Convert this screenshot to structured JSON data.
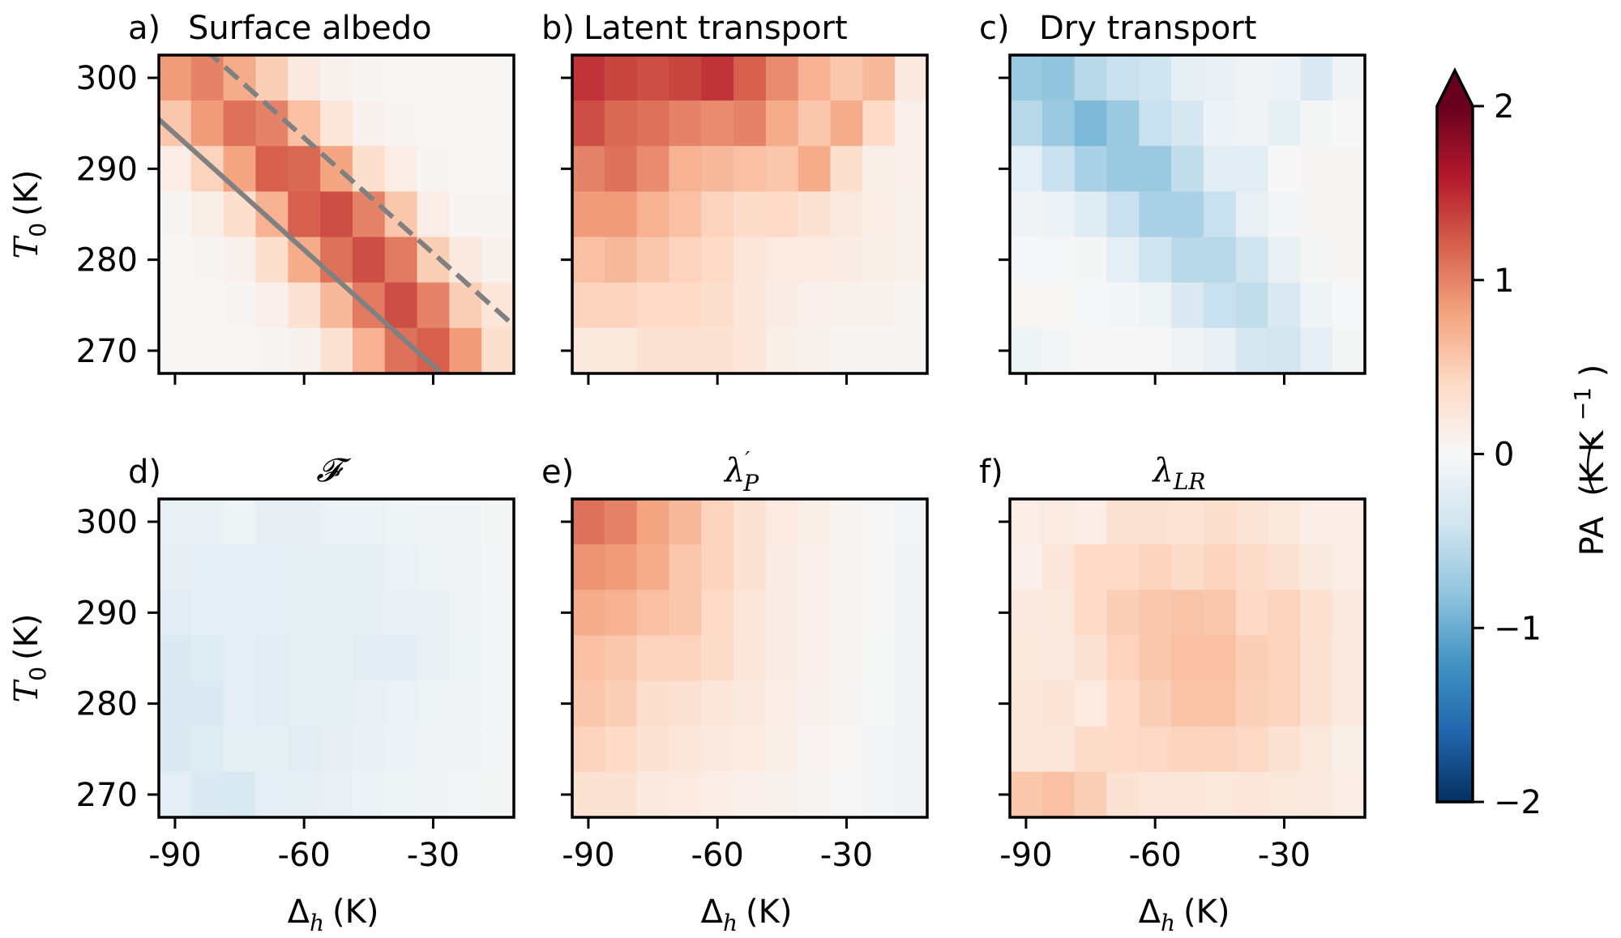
{
  "chart_data": {
    "type": "heatmap",
    "colormap": "RdBu_r",
    "x": [
      -90,
      -82.5,
      -75,
      -67.5,
      -60,
      -52.5,
      -45,
      -37.5,
      -30,
      -22.5,
      -15
    ],
    "y": [
      300,
      295,
      290,
      285,
      280,
      275,
      270
    ],
    "xlabel": "Δh (K)",
    "ylabel": "T0 (K)",
    "xticks": [
      -90,
      -60,
      -30
    ],
    "xtick_labels": [
      "-90",
      "-60",
      "-30"
    ],
    "yticks": [
      300,
      290,
      280,
      270
    ],
    "ytick_labels": [
      "300",
      "290",
      "280",
      "270"
    ],
    "colorbar": {
      "label": "PA (K K⁻¹)",
      "label_parts": {
        "main": "PA",
        "unit": "(K K",
        "exp": "−1",
        "close": ")"
      },
      "range": [
        -2,
        2
      ],
      "ticks": [
        2,
        1,
        0,
        -1,
        -2
      ],
      "tick_labels": [
        "2",
        "1",
        "0",
        "−1",
        "−2"
      ],
      "extend": "max"
    },
    "panels": [
      {
        "id": "a",
        "letter": "a)",
        "title": "Surface albedo",
        "title_math": false,
        "show_ylabel": true,
        "show_xlabel": false,
        "lines": [
          {
            "style": "solid",
            "color": "#808080",
            "x": [
              -93.9,
              -28.5
            ],
            "y": [
              295.5,
              267.7
            ]
          },
          {
            "style": "dashed",
            "color": "#808080",
            "x": [
              -82.9,
              -11.8
            ],
            "y": [
              303.1,
              273.0
            ]
          }
        ],
        "values": [
          [
            0.85,
            1.0,
            0.75,
            0.5,
            0.2,
            0.08,
            0.03,
            0.02,
            0.02,
            0.02,
            0.02
          ],
          [
            0.55,
            0.85,
            1.1,
            1.0,
            0.6,
            0.25,
            0.08,
            0.04,
            0.02,
            0.02,
            0.02
          ],
          [
            0.15,
            0.45,
            0.8,
            1.2,
            1.15,
            0.8,
            0.35,
            0.15,
            0.04,
            0.02,
            0.02
          ],
          [
            0.03,
            0.12,
            0.35,
            0.7,
            1.2,
            1.3,
            1.0,
            0.55,
            0.15,
            0.05,
            0.04
          ],
          [
            0.02,
            0.03,
            0.08,
            0.35,
            0.75,
            1.1,
            1.3,
            1.05,
            0.5,
            0.2,
            0.08
          ],
          [
            0.02,
            0.02,
            0.03,
            0.1,
            0.3,
            0.65,
            1.05,
            1.3,
            1.0,
            0.5,
            0.25
          ],
          [
            0.02,
            0.02,
            0.02,
            0.03,
            0.07,
            0.3,
            0.7,
            1.1,
            1.2,
            0.85,
            0.35
          ]
        ]
      },
      {
        "id": "b",
        "letter": "b)",
        "title": "Latent transport",
        "title_math": false,
        "show_ylabel": false,
        "show_xlabel": false,
        "lines": [],
        "values": [
          [
            1.45,
            1.35,
            1.3,
            1.35,
            1.45,
            1.2,
            0.95,
            0.7,
            0.55,
            0.65,
            0.2
          ],
          [
            1.3,
            1.15,
            1.1,
            1.0,
            0.95,
            1.0,
            0.75,
            0.55,
            0.75,
            0.4,
            0.1
          ],
          [
            1.0,
            1.1,
            0.95,
            0.7,
            0.65,
            0.6,
            0.55,
            0.75,
            0.35,
            0.12,
            0.1
          ],
          [
            0.85,
            0.85,
            0.7,
            0.6,
            0.45,
            0.38,
            0.4,
            0.3,
            0.2,
            0.15,
            0.08
          ],
          [
            0.6,
            0.65,
            0.55,
            0.45,
            0.4,
            0.25,
            0.18,
            0.18,
            0.16,
            0.12,
            0.08
          ],
          [
            0.45,
            0.45,
            0.4,
            0.4,
            0.35,
            0.25,
            0.16,
            0.1,
            0.09,
            0.07,
            0.05
          ],
          [
            0.22,
            0.22,
            0.3,
            0.3,
            0.3,
            0.25,
            0.12,
            0.07,
            0.05,
            0.04,
            0.03
          ]
        ]
      },
      {
        "id": "c",
        "letter": "c)",
        "title": "Dry transport",
        "title_math": false,
        "show_ylabel": false,
        "show_xlabel": false,
        "lines": [],
        "values": [
          [
            -0.75,
            -0.8,
            -0.55,
            -0.45,
            -0.4,
            -0.18,
            -0.15,
            -0.08,
            -0.12,
            -0.3,
            -0.08
          ],
          [
            -0.55,
            -0.75,
            -0.9,
            -0.75,
            -0.45,
            -0.35,
            -0.12,
            -0.08,
            -0.18,
            -0.03,
            0.0
          ],
          [
            -0.2,
            -0.45,
            -0.65,
            -0.75,
            -0.75,
            -0.5,
            -0.22,
            -0.22,
            0.0,
            0.03,
            0.03
          ],
          [
            -0.08,
            -0.12,
            -0.25,
            -0.45,
            -0.65,
            -0.65,
            -0.45,
            -0.15,
            -0.04,
            0.03,
            0.04
          ],
          [
            -0.02,
            -0.02,
            -0.03,
            -0.2,
            -0.4,
            -0.55,
            -0.55,
            -0.4,
            -0.15,
            -0.03,
            0.03
          ],
          [
            0.02,
            0.02,
            -0.02,
            -0.04,
            -0.1,
            -0.3,
            -0.45,
            -0.5,
            -0.3,
            -0.1,
            -0.02
          ],
          [
            -0.1,
            -0.04,
            0.0,
            0.0,
            0.01,
            -0.06,
            -0.15,
            -0.35,
            -0.38,
            -0.2,
            -0.03
          ]
        ]
      },
      {
        "id": "d",
        "letter": "d)",
        "title": "𝓕",
        "title_math": true,
        "show_ylabel": true,
        "show_xlabel": true,
        "lines": [],
        "values": [
          [
            -0.15,
            -0.14,
            -0.1,
            -0.17,
            -0.17,
            -0.13,
            -0.13,
            -0.1,
            -0.06,
            -0.06,
            -0.03
          ],
          [
            -0.17,
            -0.2,
            -0.2,
            -0.2,
            -0.18,
            -0.18,
            -0.18,
            -0.13,
            -0.1,
            -0.08,
            -0.04
          ],
          [
            -0.22,
            -0.2,
            -0.2,
            -0.2,
            -0.18,
            -0.18,
            -0.18,
            -0.15,
            -0.15,
            -0.08,
            -0.05
          ],
          [
            -0.3,
            -0.25,
            -0.2,
            -0.23,
            -0.18,
            -0.18,
            -0.22,
            -0.22,
            -0.15,
            -0.1,
            -0.05
          ],
          [
            -0.3,
            -0.3,
            -0.2,
            -0.22,
            -0.18,
            -0.18,
            -0.15,
            -0.13,
            -0.1,
            -0.08,
            -0.05
          ],
          [
            -0.3,
            -0.25,
            -0.18,
            -0.18,
            -0.23,
            -0.17,
            -0.14,
            -0.12,
            -0.08,
            -0.07,
            -0.04
          ],
          [
            -0.2,
            -0.3,
            -0.32,
            -0.2,
            -0.18,
            -0.15,
            -0.12,
            -0.1,
            -0.06,
            -0.05,
            -0.03
          ]
        ]
      },
      {
        "id": "e",
        "letter": "e)",
        "title": "λ′P",
        "title_math": true,
        "show_ylabel": false,
        "show_xlabel": true,
        "lines": [],
        "values": [
          [
            1.1,
            1.0,
            0.8,
            0.65,
            0.45,
            0.3,
            0.18,
            0.12,
            0.05,
            0.01,
            -0.05
          ],
          [
            0.9,
            0.85,
            0.75,
            0.55,
            0.45,
            0.3,
            0.16,
            0.1,
            0.04,
            0.0,
            -0.06
          ],
          [
            0.75,
            0.7,
            0.6,
            0.55,
            0.4,
            0.25,
            0.16,
            0.1,
            0.04,
            0.0,
            -0.06
          ],
          [
            0.6,
            0.55,
            0.45,
            0.45,
            0.38,
            0.25,
            0.16,
            0.1,
            0.04,
            -0.01,
            -0.07
          ],
          [
            0.55,
            0.5,
            0.35,
            0.3,
            0.25,
            0.2,
            0.14,
            0.08,
            0.03,
            -0.01,
            -0.07
          ],
          [
            0.45,
            0.4,
            0.3,
            0.25,
            0.2,
            0.18,
            0.13,
            0.06,
            0.02,
            -0.04,
            -0.07
          ],
          [
            0.3,
            0.3,
            0.2,
            0.18,
            0.15,
            0.1,
            0.07,
            0.03,
            0.01,
            -0.04,
            -0.08
          ]
        ]
      },
      {
        "id": "f",
        "letter": "f)",
        "title": "λLR",
        "title_math": true,
        "show_ylabel": false,
        "show_xlabel": true,
        "lines": [],
        "values": [
          [
            0.15,
            0.18,
            0.15,
            0.3,
            0.3,
            0.28,
            0.35,
            0.28,
            0.22,
            0.15,
            0.15
          ],
          [
            0.1,
            0.25,
            0.4,
            0.4,
            0.45,
            0.38,
            0.45,
            0.38,
            0.3,
            0.2,
            0.15
          ],
          [
            0.2,
            0.22,
            0.4,
            0.5,
            0.55,
            0.58,
            0.55,
            0.42,
            0.45,
            0.32,
            0.2
          ],
          [
            0.22,
            0.2,
            0.3,
            0.45,
            0.55,
            0.6,
            0.6,
            0.5,
            0.45,
            0.3,
            0.2
          ],
          [
            0.25,
            0.28,
            0.18,
            0.4,
            0.5,
            0.58,
            0.58,
            0.48,
            0.45,
            0.3,
            0.2
          ],
          [
            0.25,
            0.25,
            0.38,
            0.4,
            0.42,
            0.45,
            0.45,
            0.42,
            0.3,
            0.22,
            0.12
          ],
          [
            0.55,
            0.6,
            0.5,
            0.3,
            0.25,
            0.25,
            0.22,
            0.25,
            0.22,
            0.2,
            0.15
          ]
        ]
      }
    ]
  }
}
